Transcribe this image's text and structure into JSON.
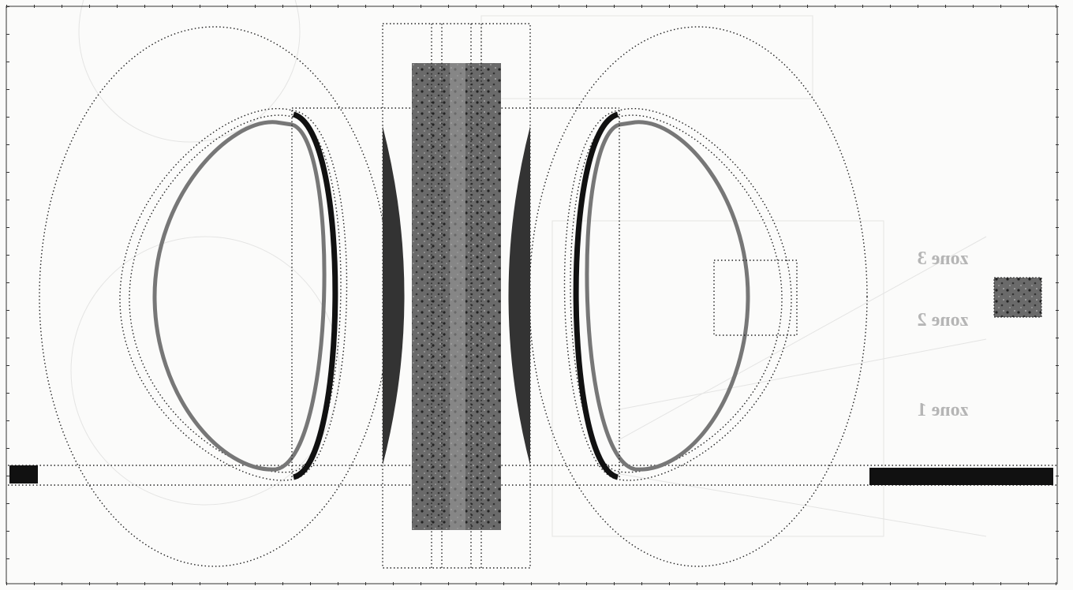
{
  "labels": {
    "zone_3": "zone 3",
    "zone_2": "zone 2",
    "zone_1": "zone 1"
  }
}
